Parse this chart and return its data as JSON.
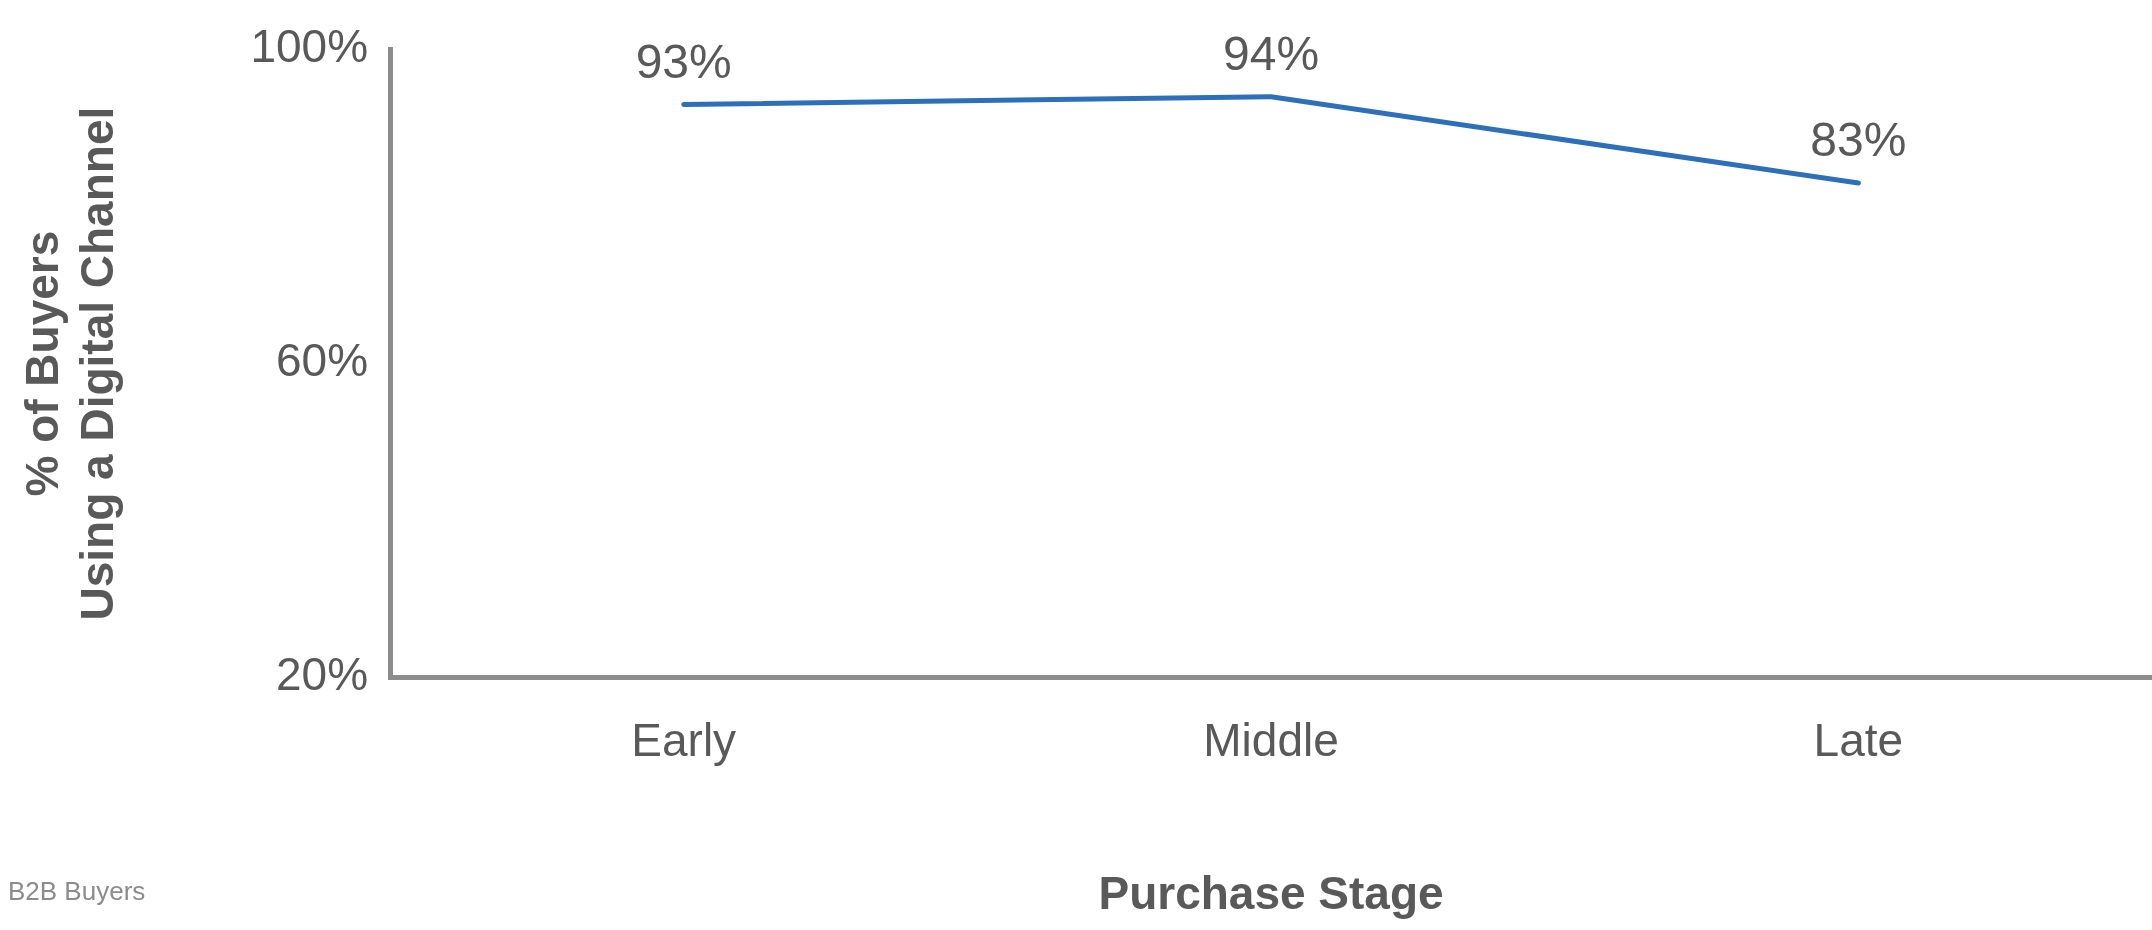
{
  "chart_data": {
    "type": "line",
    "xlabel": "Purchase Stage",
    "ylabel": "% of Buyers\nUsing a Digital Channel",
    "categories": [
      "Early",
      "Middle",
      "Late"
    ],
    "series": [
      {
        "color": "#2e6fba",
        "values": [
          93,
          94,
          83
        ],
        "value_labels": [
          "93%",
          "94%",
          "83%"
        ]
      }
    ],
    "ylim": [
      20,
      100
    ],
    "yticks": [
      {
        "value": 20,
        "label": "20%"
      },
      {
        "value": 60,
        "label": "60%"
      },
      {
        "value": 100,
        "label": "100%"
      }
    ],
    "grid": false,
    "legend": false,
    "marker": "none",
    "line_style": "solid",
    "annotations": [
      "B2B Buyers"
    ]
  }
}
